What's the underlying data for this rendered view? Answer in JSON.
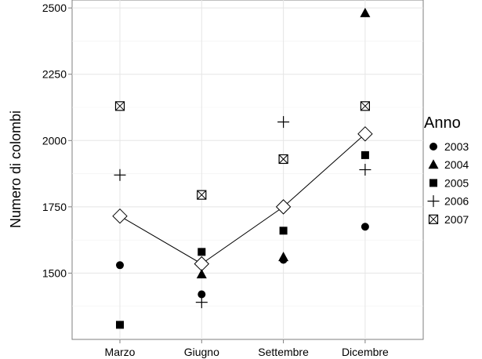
{
  "chart_data": {
    "type": "scatter",
    "categories": [
      "Marzo",
      "Giugno",
      "Settembre",
      "Dicembre"
    ],
    "ylabel": "Numero di colombi",
    "xlabel": "",
    "ylim": [
      1250,
      2530
    ],
    "yticks": [
      1500,
      1750,
      2000,
      2250,
      2500
    ],
    "grid": true,
    "legend": {
      "title": "Anno",
      "position": "right"
    },
    "series": [
      {
        "name": "2003",
        "shape": "circle",
        "values": [
          1530,
          1420,
          1550,
          1675
        ]
      },
      {
        "name": "2004",
        "shape": "triangle",
        "values": [
          null,
          1495,
          1560,
          2480
        ]
      },
      {
        "name": "2005",
        "shape": "square",
        "values": [
          1305,
          1580,
          1660,
          1945
        ]
      },
      {
        "name": "2006",
        "shape": "plus",
        "values": [
          1870,
          1390,
          2070,
          1890
        ]
      },
      {
        "name": "2007",
        "shape": "square-x",
        "values": [
          2130,
          1795,
          1930,
          2130
        ]
      }
    ],
    "mean_line": {
      "shape": "diamond",
      "values": [
        1715,
        1535,
        1750,
        2025
      ]
    }
  }
}
